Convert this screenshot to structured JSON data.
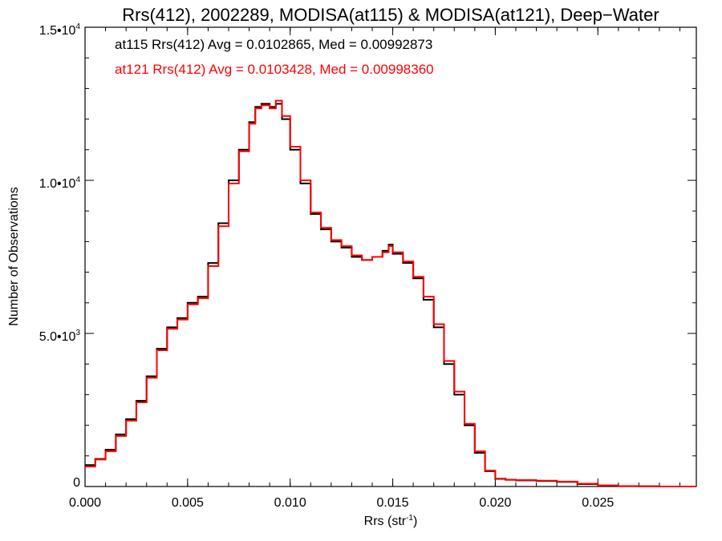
{
  "chart_data": {
    "type": "line",
    "title": "Rrs(412), 2002289, MODISA(at115) & MODISA(at121), Deep−Water",
    "xlabel_main": "Rrs (str",
    "xlabel_sup": "-1",
    "xlabel_tail": ")",
    "ylabel": "Number of Observations",
    "xlim": [
      0.0,
      0.0298
    ],
    "ylim": [
      0,
      15000
    ],
    "x_ticks": [
      {
        "value": 0.0,
        "label": "0.000"
      },
      {
        "value": 0.005,
        "label": "0.005"
      },
      {
        "value": 0.01,
        "label": "0.010"
      },
      {
        "value": 0.015,
        "label": "0.015"
      },
      {
        "value": 0.02,
        "label": "0.020"
      },
      {
        "value": 0.025,
        "label": "0.025"
      }
    ],
    "y_ticks": [
      {
        "value": 0,
        "mantissa": "0",
        "exp": ""
      },
      {
        "value": 5000,
        "mantissa": "5.0•10",
        "exp": "3"
      },
      {
        "value": 10000,
        "mantissa": "1.0•10",
        "exp": "4"
      },
      {
        "value": 15000,
        "mantissa": "1.5•10",
        "exp": "4"
      }
    ],
    "annotations": [
      {
        "text": "at115 Rrs(412) Avg = 0.0102865, Med = 0.00992873",
        "color": "#000000"
      },
      {
        "text": "at121 Rrs(412) Avg = 0.0103428, Med = 0.00998360",
        "color": "#ff0000"
      }
    ],
    "series": [
      {
        "color": "#000000",
        "x": [
          0.0,
          0.0005,
          0.001,
          0.0015,
          0.002,
          0.0025,
          0.003,
          0.0035,
          0.004,
          0.0045,
          0.005,
          0.0055,
          0.006,
          0.0065,
          0.007,
          0.0075,
          0.008,
          0.0083,
          0.0086,
          0.009,
          0.0093,
          0.0096,
          0.01,
          0.0105,
          0.011,
          0.0115,
          0.012,
          0.0125,
          0.013,
          0.0135,
          0.014,
          0.0145,
          0.0148,
          0.015,
          0.0155,
          0.016,
          0.0165,
          0.017,
          0.0175,
          0.018,
          0.0185,
          0.019,
          0.0195,
          0.02,
          0.0205,
          0.021,
          0.022,
          0.023,
          0.024,
          0.025,
          0.026,
          0.027,
          0.028,
          0.0298
        ],
        "y": [
          700,
          900,
          1200,
          1700,
          2200,
          2800,
          3600,
          4500,
          5200,
          5500,
          6000,
          6200,
          7300,
          8600,
          10000,
          11000,
          11900,
          12400,
          12500,
          12400,
          12500,
          12000,
          11000,
          9900,
          8900,
          8400,
          8000,
          7800,
          7500,
          7400,
          7500,
          7700,
          7900,
          7600,
          7300,
          6800,
          6100,
          5200,
          4000,
          3000,
          2000,
          1100,
          500,
          250,
          220,
          200,
          180,
          150,
          80,
          30,
          10,
          5,
          0,
          0
        ]
      },
      {
        "color": "#ff0000",
        "x": [
          0.0,
          0.0005,
          0.001,
          0.0015,
          0.002,
          0.0025,
          0.003,
          0.0035,
          0.004,
          0.0045,
          0.005,
          0.0055,
          0.006,
          0.0065,
          0.007,
          0.0075,
          0.008,
          0.0083,
          0.0086,
          0.009,
          0.0093,
          0.0096,
          0.01,
          0.0105,
          0.011,
          0.0115,
          0.012,
          0.0125,
          0.013,
          0.0135,
          0.014,
          0.0145,
          0.0148,
          0.015,
          0.0155,
          0.016,
          0.0165,
          0.017,
          0.0175,
          0.018,
          0.0185,
          0.019,
          0.0195,
          0.02,
          0.0205,
          0.021,
          0.022,
          0.023,
          0.024,
          0.025,
          0.026,
          0.027,
          0.028,
          0.0298
        ],
        "y": [
          650,
          880,
          1150,
          1650,
          2150,
          2750,
          3550,
          4450,
          5150,
          5450,
          5950,
          6150,
          7200,
          8500,
          9900,
          10950,
          11850,
          12350,
          12450,
          12350,
          12600,
          12100,
          11100,
          10000,
          8950,
          8450,
          8050,
          7850,
          7550,
          7400,
          7500,
          7650,
          7850,
          7650,
          7350,
          6850,
          6200,
          5300,
          4100,
          3100,
          2050,
          1150,
          520,
          260,
          220,
          210,
          190,
          160,
          90,
          35,
          12,
          5,
          0,
          0
        ]
      }
    ]
  }
}
